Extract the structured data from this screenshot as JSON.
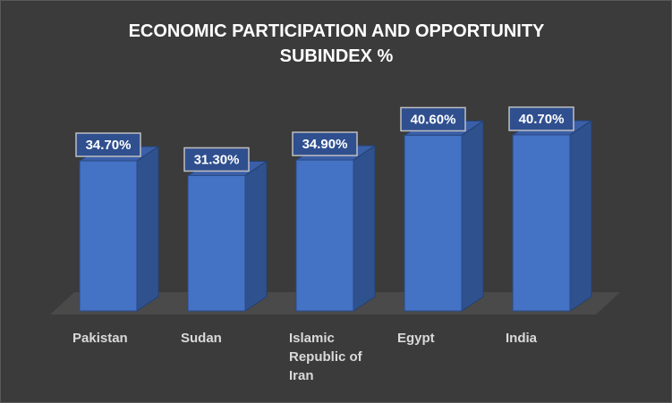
{
  "chart_data": {
    "type": "bar",
    "title_lines": [
      "ECONOMIC PARTICIPATION AND OPPORTUNITY",
      "SUBINDEX %"
    ],
    "categories": [
      [
        "Pakistan"
      ],
      [
        "Sudan"
      ],
      [
        "Islamic",
        "Republic of",
        "Iran"
      ],
      [
        "Egypt"
      ],
      [
        "India"
      ]
    ],
    "values": [
      34.7,
      31.3,
      34.9,
      40.6,
      40.7
    ],
    "data_labels": [
      "34.70%",
      "31.30%",
      "34.90%",
      "40.60%",
      "40.70%"
    ],
    "ylim": [
      0,
      45
    ],
    "grid": false,
    "legend": "none",
    "colors": {
      "bar_front": "#4472c4",
      "bar_side": "#2f528f",
      "bar_top": "#3a5fa8",
      "floor": "#4a4a4a",
      "label_box_border": "#bfbfbf",
      "label_box_fill": "#2f4f8f"
    }
  }
}
